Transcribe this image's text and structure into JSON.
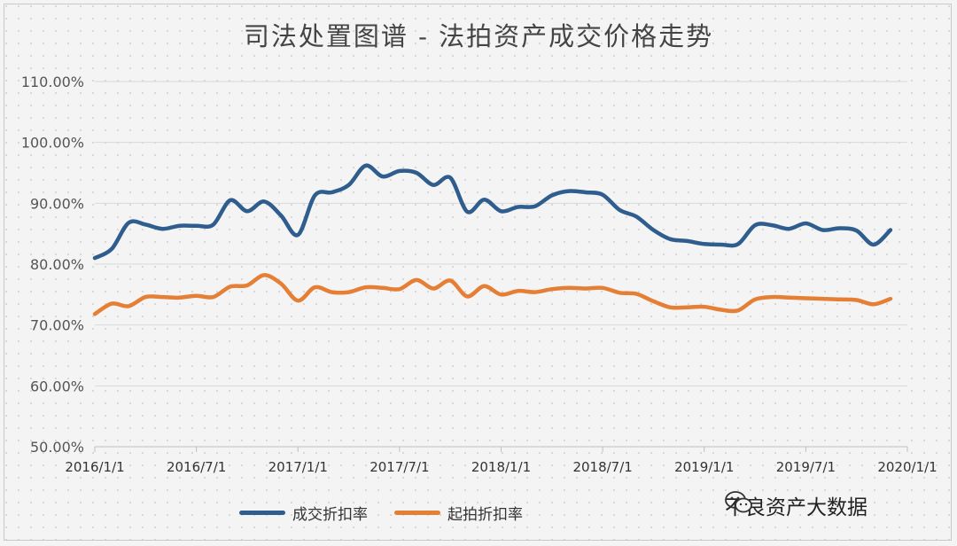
{
  "colors": {
    "series1": "#2e5d8e",
    "series2": "#e57f35",
    "grid": "#d9d9d9"
  },
  "watermark": {
    "text": "不良资产大数据",
    "icon": "wechat-icon"
  },
  "chart_data": {
    "type": "line",
    "title": "司法处置图谱 - 法拍资产成交价格走势",
    "xlabel": "",
    "ylabel": "",
    "ylim": [
      50,
      110
    ],
    "y_ticks": [
      50,
      60,
      70,
      80,
      90,
      100,
      110
    ],
    "y_tick_labels": [
      "50.00%",
      "60.00%",
      "70.00%",
      "80.00%",
      "90.00%",
      "100.00%",
      "110.00%"
    ],
    "x_range": [
      0,
      48
    ],
    "x_ticks": [
      0,
      6,
      12,
      18,
      24,
      30,
      36,
      42,
      48
    ],
    "x_tick_labels": [
      "2016/1/1",
      "2016/7/1",
      "2017/1/1",
      "2017/7/1",
      "2018/1/1",
      "2018/7/1",
      "2019/1/1",
      "2019/7/1",
      "2020/1/1"
    ],
    "legend_position": "bottom",
    "series": [
      {
        "name": "成交折扣率",
        "x": [
          0,
          1,
          2,
          3,
          4,
          5,
          6,
          7,
          8,
          9,
          10,
          11,
          12,
          13,
          14,
          15,
          16,
          17,
          18,
          19,
          20,
          21,
          22,
          23,
          24,
          25,
          26,
          27,
          28,
          29,
          30,
          31,
          32,
          33,
          34,
          35,
          36,
          37,
          38,
          39,
          40,
          41,
          42,
          43,
          44,
          45,
          46
        ],
        "values": [
          81.0,
          82.5,
          86.8,
          86.5,
          85.8,
          86.3,
          86.3,
          86.5,
          90.5,
          88.7,
          90.3,
          88.0,
          84.8,
          91.3,
          91.8,
          93.0,
          96.2,
          94.4,
          95.3,
          95.0,
          93.0,
          94.2,
          88.6,
          90.6,
          88.7,
          89.4,
          89.5,
          91.3,
          92.0,
          91.8,
          91.4,
          88.9,
          87.8,
          85.6,
          84.1,
          83.8,
          83.3,
          83.2,
          83.3,
          86.4,
          86.4,
          85.8,
          86.7,
          85.6,
          85.9,
          85.5,
          83.2
        ]
      },
      {
        "name": "起拍折扣率",
        "x": [
          0,
          1,
          2,
          3,
          4,
          5,
          6,
          7,
          8,
          9,
          10,
          11,
          12,
          13,
          14,
          15,
          16,
          17,
          18,
          19,
          20,
          21,
          22,
          23,
          24,
          25,
          26,
          27,
          28,
          29,
          30,
          31,
          32,
          33,
          34,
          35,
          36,
          37,
          38,
          39,
          40,
          41,
          42,
          43,
          44,
          45,
          46
        ],
        "values": [
          71.8,
          73.5,
          73.1,
          74.6,
          74.6,
          74.5,
          74.8,
          74.6,
          76.3,
          76.5,
          78.2,
          76.8,
          74.0,
          76.2,
          75.4,
          75.4,
          76.2,
          76.1,
          75.9,
          77.4,
          76.0,
          77.3,
          74.7,
          76.4,
          75.0,
          75.6,
          75.4,
          75.9,
          76.1,
          76.0,
          76.1,
          75.3,
          75.1,
          73.9,
          72.9,
          72.9,
          73.0,
          72.5,
          72.4,
          74.2,
          74.6,
          74.5,
          74.4,
          74.3,
          74.2,
          74.1,
          73.4
        ]
      }
    ],
    "series_end": [
      {
        "x": 47,
        "value": 85.6
      },
      {
        "x": 47,
        "value": 74.3
      }
    ]
  }
}
